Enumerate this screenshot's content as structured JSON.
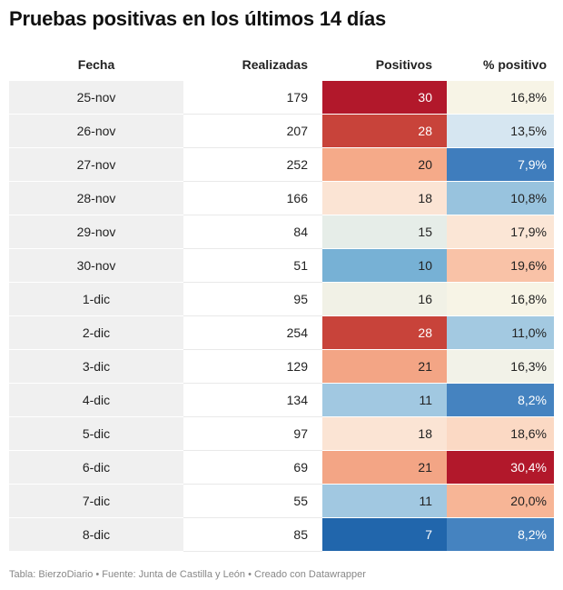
{
  "title": "Pruebas positivas en los últimos 14 días",
  "footer": "Tabla: BierzoDiario • Fuente: Junta de Castilla y León • Creado con Datawrapper",
  "chart_data": {
    "type": "table",
    "title": "Pruebas positivas en los últimos 14 días",
    "columns": [
      "Fecha",
      "Realizadas",
      "Positivos",
      "% positivo"
    ],
    "rows": [
      {
        "fecha": "25-nov",
        "realizadas": "179",
        "positivos": "30",
        "pct": "16,8%",
        "pos_color": "#b2182b",
        "pct_color": "#f7f4e6"
      },
      {
        "fecha": "26-nov",
        "realizadas": "207",
        "positivos": "28",
        "pct": "13,5%",
        "pos_color": "#c8433a",
        "pct_color": "#d6e6f1"
      },
      {
        "fecha": "27-nov",
        "realizadas": "252",
        "positivos": "20",
        "pct": "7,9%",
        "pos_color": "#f5aa89",
        "pct_color": "#3f7dbd"
      },
      {
        "fecha": "28-nov",
        "realizadas": "166",
        "positivos": "18",
        "pct": "10,8%",
        "pos_color": "#fbe4d4",
        "pct_color": "#98c3de"
      },
      {
        "fecha": "29-nov",
        "realizadas": "84",
        "positivos": "15",
        "pct": "17,9%",
        "pos_color": "#e6ede8",
        "pct_color": "#fbe6d6"
      },
      {
        "fecha": "30-nov",
        "realizadas": "51",
        "positivos": "10",
        "pct": "19,6%",
        "pos_color": "#77b1d5",
        "pct_color": "#f9c2a7"
      },
      {
        "fecha": "1-dic",
        "realizadas": "95",
        "positivos": "16",
        "pct": "16,8%",
        "pos_color": "#f1f1e6",
        "pct_color": "#f7f4e6"
      },
      {
        "fecha": "2-dic",
        "realizadas": "254",
        "positivos": "28",
        "pct": "11,0%",
        "pos_color": "#c8433a",
        "pct_color": "#a3c9e1"
      },
      {
        "fecha": "3-dic",
        "realizadas": "129",
        "positivos": "21",
        "pct": "16,3%",
        "pos_color": "#f3a585",
        "pct_color": "#f2f2e8"
      },
      {
        "fecha": "4-dic",
        "realizadas": "134",
        "positivos": "11",
        "pct": "8,2%",
        "pos_color": "#a1c8e1",
        "pct_color": "#4583c0"
      },
      {
        "fecha": "5-dic",
        "realizadas": "97",
        "positivos": "18",
        "pct": "18,6%",
        "pos_color": "#fbe4d4",
        "pct_color": "#fbd9c4"
      },
      {
        "fecha": "6-dic",
        "realizadas": "69",
        "positivos": "21",
        "pct": "30,4%",
        "pos_color": "#f3a585",
        "pct_color": "#b2182b"
      },
      {
        "fecha": "7-dic",
        "realizadas": "55",
        "positivos": "11",
        "pct": "20,0%",
        "pos_color": "#a1c8e1",
        "pct_color": "#f7b596"
      },
      {
        "fecha": "8-dic",
        "realizadas": "85",
        "positivos": "7",
        "pct": "8,2%",
        "pos_color": "#2166ac",
        "pct_color": "#4583c0"
      }
    ]
  }
}
